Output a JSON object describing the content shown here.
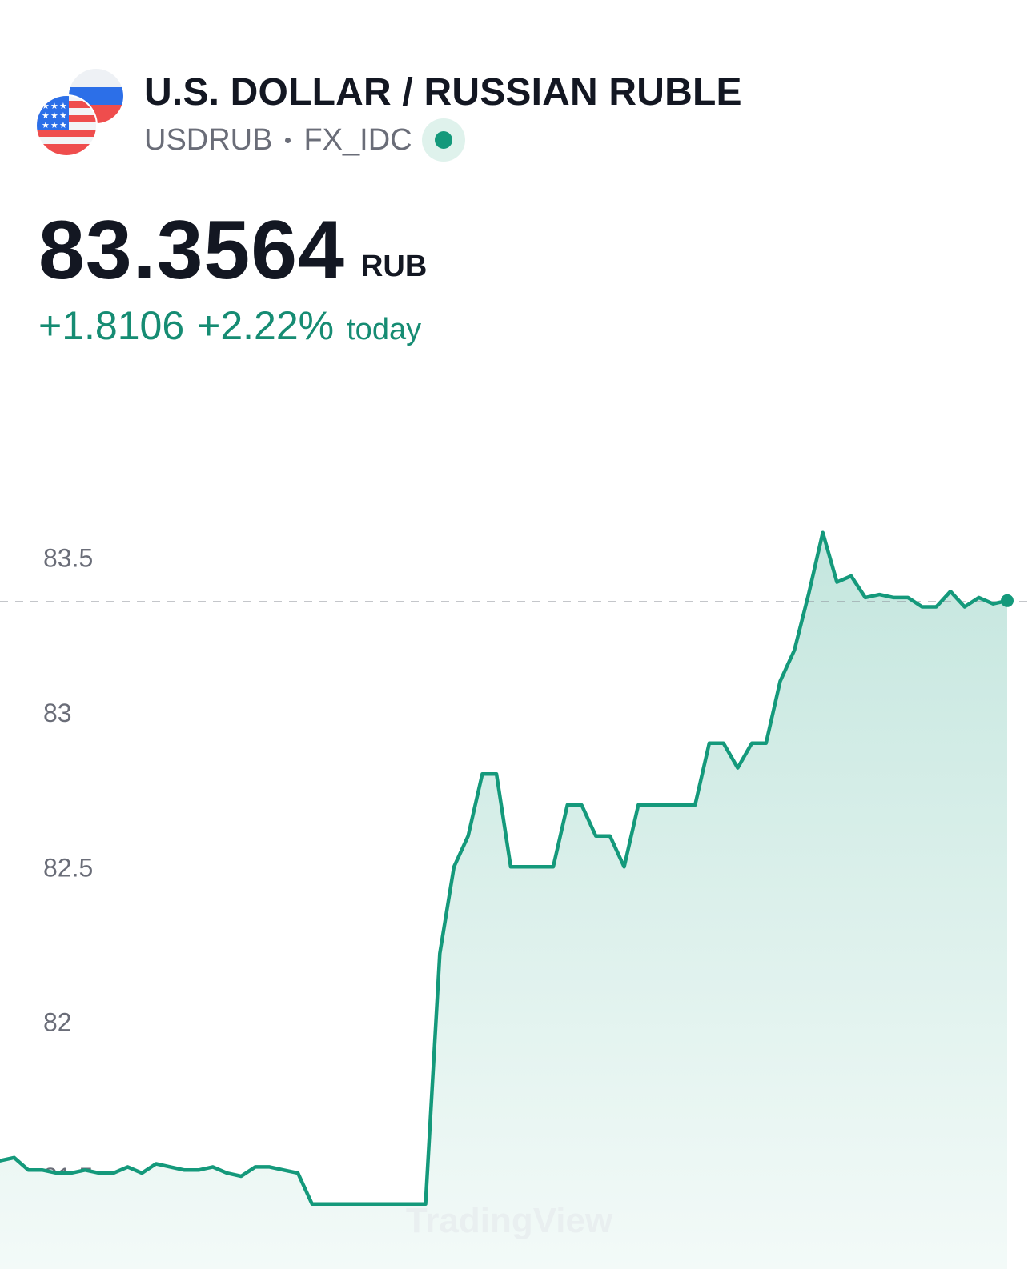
{
  "header": {
    "title": "U.S. DOLLAR / RUSSIAN RUBLE",
    "symbol": "USDRUB",
    "exchange": "FX_IDC",
    "status_icon": "market-open-dot"
  },
  "quote": {
    "price": "83.3564",
    "currency": "RUB",
    "change_abs": "+1.8106",
    "change_pct": "+2.22%",
    "change_period": "today"
  },
  "colors": {
    "line": "#14997b",
    "fill_top": "#c4e6de",
    "fill_bottom": "#f3faf8",
    "axis_text": "#6a6d78",
    "positive": "#168c73"
  },
  "watermark": "TradingView",
  "chart_data": {
    "type": "area",
    "y_ticks": [
      81.5,
      82,
      82.5,
      83,
      83.5
    ],
    "y_tick_labels": [
      "81.5",
      "82",
      "82.5",
      "83",
      "83.5"
    ],
    "ylim": [
      81.2,
      83.75
    ],
    "reference_line": 83.3564,
    "grid": false,
    "series": [
      {
        "values": [
          81.55,
          81.56,
          81.52,
          81.52,
          81.51,
          81.51,
          81.52,
          81.51,
          81.51,
          81.53,
          81.51,
          81.54,
          81.53,
          81.52,
          81.52,
          81.53,
          81.51,
          81.5,
          81.53,
          81.53,
          81.52,
          81.51,
          81.41,
          81.41,
          81.41,
          81.41,
          81.41,
          81.41,
          81.41,
          81.41,
          81.41,
          82.22,
          82.5,
          82.6,
          82.8,
          82.8,
          82.5,
          82.5,
          82.5,
          82.5,
          82.7,
          82.7,
          82.6,
          82.6,
          82.5,
          82.7,
          82.7,
          82.7,
          82.7,
          82.7,
          82.9,
          82.9,
          82.82,
          82.9,
          82.9,
          83.1,
          83.2,
          83.38,
          83.58,
          83.42,
          83.44,
          83.37,
          83.38,
          83.37,
          83.37,
          83.34,
          83.34,
          83.39,
          83.34,
          83.37,
          83.35,
          83.36
        ]
      }
    ]
  }
}
